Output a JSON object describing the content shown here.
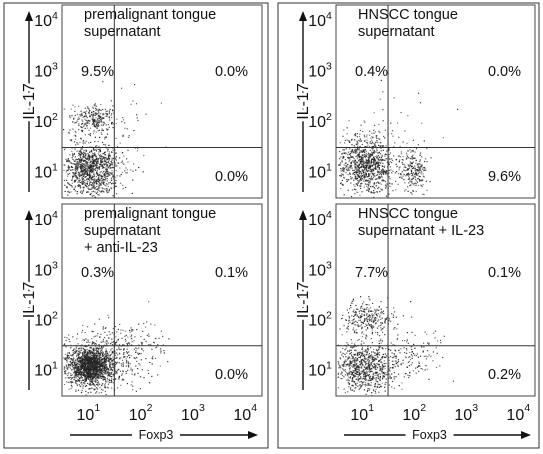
{
  "axes": {
    "xlabel": "Foxp3",
    "ylabel": "IL-17",
    "x_ticks": [
      {
        "label": "10",
        "exp": "1",
        "value": 10
      },
      {
        "label": "10",
        "exp": "2",
        "value": 100
      },
      {
        "label": "10",
        "exp": "3",
        "value": 1000
      },
      {
        "label": "10",
        "exp": "4",
        "value": 10000
      }
    ],
    "y_ticks": [
      {
        "label": "10",
        "exp": "1",
        "value": 10
      },
      {
        "label": "10",
        "exp": "2",
        "value": 100
      },
      {
        "label": "10",
        "exp": "3",
        "value": 1000
      },
      {
        "label": "10",
        "exp": "4",
        "value": 10000
      }
    ]
  },
  "chart_data": [
    {
      "type": "scatter",
      "title": "premalignant tongue supernatant",
      "title_lines": [
        "premalignant tongue",
        "supernatant"
      ],
      "xlabel": "",
      "ylabel": "IL-17",
      "xscale": "log",
      "yscale": "log",
      "xlim": [
        3,
        20000
      ],
      "ylim": [
        3,
        20000
      ],
      "gate": {
        "x": 30,
        "y": 30
      },
      "quadrants": {
        "upper_left": "9.5%",
        "upper_right": "0.0%",
        "lower_left": "",
        "lower_right": "0.0%"
      },
      "populations": [
        {
          "cx": 11,
          "cy": 11,
          "sx": 0.28,
          "sy": 0.27,
          "n": 1100
        },
        {
          "cx": 12,
          "cy": 110,
          "sx": 0.22,
          "sy": 0.15,
          "n": 260
        },
        {
          "cx": 40,
          "cy": 60,
          "sx": 0.4,
          "sy": 0.4,
          "n": 45
        }
      ]
    },
    {
      "type": "scatter",
      "title": "HNSCC tongue supernatant",
      "title_lines": [
        "HNSCC tongue",
        "supernatant"
      ],
      "xlabel": "",
      "ylabel": "IL-17",
      "xscale": "log",
      "yscale": "log",
      "xlim": [
        3,
        20000
      ],
      "ylim": [
        3,
        20000
      ],
      "gate": {
        "x": 30,
        "y": 30
      },
      "quadrants": {
        "upper_left": "0.4%",
        "upper_right": "0.0%",
        "lower_left": "",
        "lower_right": "9.6%"
      },
      "populations": [
        {
          "cx": 11,
          "cy": 13,
          "sx": 0.28,
          "sy": 0.25,
          "n": 900
        },
        {
          "cx": 90,
          "cy": 10,
          "sx": 0.13,
          "sy": 0.22,
          "n": 220
        },
        {
          "cx": 12,
          "cy": 45,
          "sx": 0.25,
          "sy": 0.12,
          "n": 60
        },
        {
          "cx": 40,
          "cy": 60,
          "sx": 0.4,
          "sy": 0.4,
          "n": 40
        }
      ]
    },
    {
      "type": "scatter",
      "title": "premalignant tongue supernatant + anti-IL-23",
      "title_lines": [
        "premalignant tongue",
        "supernatant",
        "+ anti-IL-23"
      ],
      "xlabel": "Foxp3",
      "ylabel": "IL-17",
      "xscale": "log",
      "yscale": "log",
      "xlim": [
        3,
        20000
      ],
      "ylim": [
        3,
        20000
      ],
      "gate": {
        "x": 30,
        "y": 30
      },
      "quadrants": {
        "upper_left": "0.3%",
        "upper_right": "0.1%",
        "lower_left": "",
        "lower_right": "0.0%"
      },
      "populations": [
        {
          "cx": 10,
          "cy": 12,
          "sx": 0.2,
          "sy": 0.18,
          "n": 1400
        },
        {
          "cx": 14,
          "cy": 15,
          "sx": 0.38,
          "sy": 0.32,
          "n": 500
        },
        {
          "cx": 60,
          "cy": 25,
          "sx": 0.35,
          "sy": 0.28,
          "n": 160
        }
      ]
    },
    {
      "type": "scatter",
      "title": "HNSCC tongue supernatant + IL-23",
      "title_lines": [
        "HNSCC tongue",
        "supernatant + IL-23"
      ],
      "xlabel": "Foxp3",
      "ylabel": "IL-17",
      "xscale": "log",
      "yscale": "log",
      "xlim": [
        3,
        20000
      ],
      "ylim": [
        3,
        20000
      ],
      "gate": {
        "x": 30,
        "y": 30
      },
      "quadrants": {
        "upper_left": "7.7%",
        "upper_right": "0.1%",
        "lower_left": "",
        "lower_right": "0.2%"
      },
      "populations": [
        {
          "cx": 11,
          "cy": 12,
          "sx": 0.3,
          "sy": 0.24,
          "n": 800
        },
        {
          "cx": 12,
          "cy": 110,
          "sx": 0.26,
          "sy": 0.17,
          "n": 280
        },
        {
          "cx": 80,
          "cy": 20,
          "sx": 0.3,
          "sy": 0.22,
          "n": 120
        }
      ]
    }
  ]
}
